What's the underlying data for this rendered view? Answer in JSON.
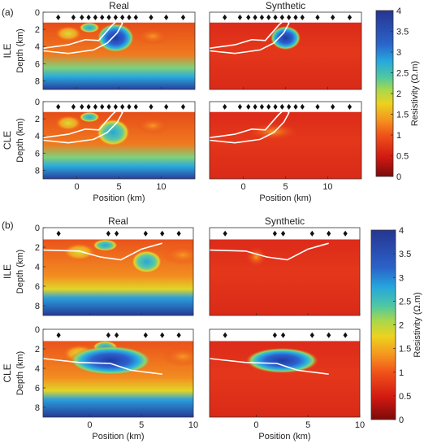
{
  "chart_data": [
    {
      "type": "heatmap",
      "panel": "(a)",
      "column_titles": [
        "Real",
        "Synthetic"
      ],
      "row_labels": [
        "ILE",
        "CLE"
      ],
      "ylabel": "Depth (km)",
      "xlabel": "Position (km)",
      "xticks": [
        0,
        5,
        10
      ],
      "yticks": [
        0,
        2,
        4,
        6,
        8
      ],
      "xlim": [
        -4,
        14
      ],
      "ylim": [
        0,
        9
      ],
      "colorbar": {
        "label": "Resistivity (Ω.m)",
        "ticks": [
          "4",
          "3.5",
          "3",
          "2.5",
          "2",
          "1.5",
          "1",
          "0.5",
          "0"
        ],
        "range": [
          0,
          4
        ]
      },
      "stations": [
        -2.2,
        -0.4,
        0.6,
        1.4,
        2.2,
        3.0,
        3.8,
        4.6,
        5.4,
        6.2,
        7.0,
        8.8,
        10.6,
        12.6
      ],
      "anomalies": [
        {
          "row": "ILE",
          "col": "Real",
          "x": 4.6,
          "y": 3.0,
          "rx": 2.2,
          "ry": 1.7,
          "value": 3.7
        },
        {
          "row": "ILE",
          "col": "Synthetic",
          "x": 5.0,
          "y": 3.0,
          "rx": 1.8,
          "ry": 1.4,
          "value": 3.8
        },
        {
          "row": "CLE",
          "col": "Real",
          "x": 4.3,
          "y": 3.6,
          "rx": 2.0,
          "ry": 1.6,
          "value": 2.6
        },
        {
          "row": "CLE",
          "col": "Synthetic",
          "x": 3.5,
          "y": 3.5,
          "rx": 3.0,
          "ry": 1.0,
          "value": 0.8
        }
      ]
    },
    {
      "type": "heatmap",
      "panel": "(b)",
      "column_titles": [
        "Real",
        "Synthetic"
      ],
      "row_labels": [
        "ILE",
        "CLE"
      ],
      "ylabel": "Depth (km)",
      "xlabel": "Position (km)",
      "xticks": [
        0,
        5,
        10
      ],
      "yticks": [
        0,
        2,
        4,
        6,
        8
      ],
      "xlim": [
        -4.5,
        10
      ],
      "ylim": [
        0,
        9
      ],
      "colorbar": {
        "label": "Resistivity (Ω.m)",
        "ticks": [
          "4",
          "3.5",
          "3",
          "2.5",
          "2",
          "1.5",
          "1",
          "0.5",
          "0"
        ],
        "range": [
          0,
          4
        ]
      },
      "stations": [
        -3.0,
        1.8,
        2.6,
        5.4,
        7.0,
        8.6
      ],
      "anomalies": [
        {
          "row": "ILE",
          "col": "Real",
          "x": 5.5,
          "y": 3.5,
          "rx": 1.5,
          "ry": 1.2,
          "value": 2.2
        },
        {
          "row": "ILE",
          "col": "Synthetic",
          "x": 0.0,
          "y": 3.0,
          "rx": 1.0,
          "ry": 1.0,
          "value": 1.0
        },
        {
          "row": "CLE",
          "col": "Real",
          "x": 2.0,
          "y": 3.2,
          "rx": 4.0,
          "ry": 1.5,
          "value": 3.7
        },
        {
          "row": "CLE",
          "col": "Synthetic",
          "x": 2.5,
          "y": 3.2,
          "rx": 3.5,
          "ry": 1.3,
          "value": 3.7
        }
      ]
    }
  ]
}
